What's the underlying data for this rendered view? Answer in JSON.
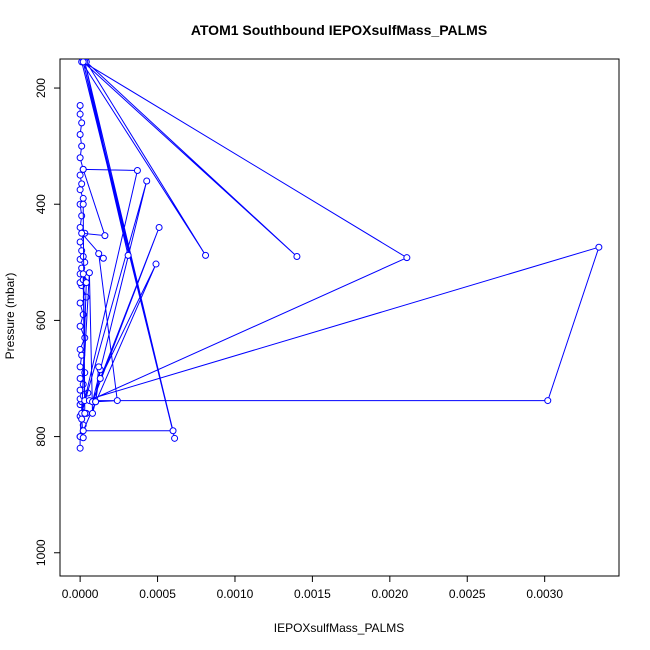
{
  "chart_data": {
    "type": "line",
    "title": "ATOM1 Southbound IEPOXsulfMass_PALMS",
    "xlabel": "IEPOXsulfMass_PALMS",
    "ylabel": "Pressure (mbar)",
    "xlim": [
      -0.00013,
      0.00348
    ],
    "ylim": [
      1040,
      150
    ],
    "y_reversed": true,
    "x_ticks": [
      "0.0000",
      "0.0005",
      "0.0010",
      "0.0015",
      "0.0020",
      "0.0025",
      "0.0030"
    ],
    "x_tick_values": [
      0,
      0.0005,
      0.001,
      0.0015,
      0.002,
      0.0025,
      0.003
    ],
    "y_ticks": [
      "200",
      "400",
      "600",
      "800",
      "1000"
    ],
    "y_tick_values": [
      200,
      400,
      600,
      800,
      1000
    ],
    "grid": false,
    "legend": "none",
    "series": [
      {
        "color": "#0000ff",
        "marker": "open-circle",
        "x": [
          0,
          0.0,
          2e-05,
          0,
          4e-05,
          0,
          1e-05,
          0,
          2e-05,
          5e-05,
          0,
          2e-05,
          0,
          3e-05,
          0,
          1e-05,
          0,
          3e-05,
          0,
          2e-05,
          0,
          4e-05,
          1e-05,
          0,
          2e-05,
          0,
          1e-05,
          3e-05,
          0,
          2e-05,
          1e-05,
          0,
          3e-05,
          0,
          1e-05,
          0,
          2e-05,
          0,
          1e-05,
          0,
          2e-05,
          0,
          1e-05,
          0,
          1e-05,
          0,
          0.0
        ],
        "y": [
          820,
          800,
          780,
          765,
          760,
          745,
          740,
          735,
          730,
          725,
          720,
          710,
          700,
          690,
          680,
          660,
          650,
          630,
          610,
          590,
          570,
          560,
          540,
          535,
          530,
          520,
          510,
          500,
          495,
          490,
          480,
          465,
          450,
          440,
          420,
          400,
          390,
          375,
          365,
          350,
          340,
          320,
          300,
          280,
          260,
          245,
          230
        ],
        "show_markers": true
      },
      {
        "color": "#0000ff",
        "marker": "open-circle",
        "x": [
          3e-05,
          0.00335,
          0.00302,
          6e-05,
          0.00211,
          2e-05,
          0.0014,
          4e-05,
          0.00081,
          1e-05,
          0.00061,
          3e-05,
          0.00031,
          2e-05,
          0.0006,
          2e-05,
          0.00049,
          0.00013,
          0.00051,
          8e-05,
          0.00043,
          1e-05,
          0.00037,
          2e-05,
          0.00016,
          1e-05,
          0.00015,
          0.00012,
          0.00024,
          0.0001,
          0.00013,
          0.00012,
          0.0001,
          8e-05,
          6e-05,
          0.0,
          2e-05,
          1e-05,
          4e-05,
          2e-05,
          3e-05,
          2e-05
        ],
        "y": [
          738,
          474,
          738,
          738,
          492,
          155,
          490,
          155,
          488,
          155,
          803,
          155,
          488,
          155,
          790,
          790,
          503,
          700,
          440,
          740,
          360,
          760,
          342,
          340,
          454,
          450,
          493,
          485,
          738,
          740,
          685,
          680,
          740,
          760,
          518,
          800,
          802,
          770,
          535,
          520,
          760,
          400
        ],
        "show_markers": true
      }
    ]
  }
}
